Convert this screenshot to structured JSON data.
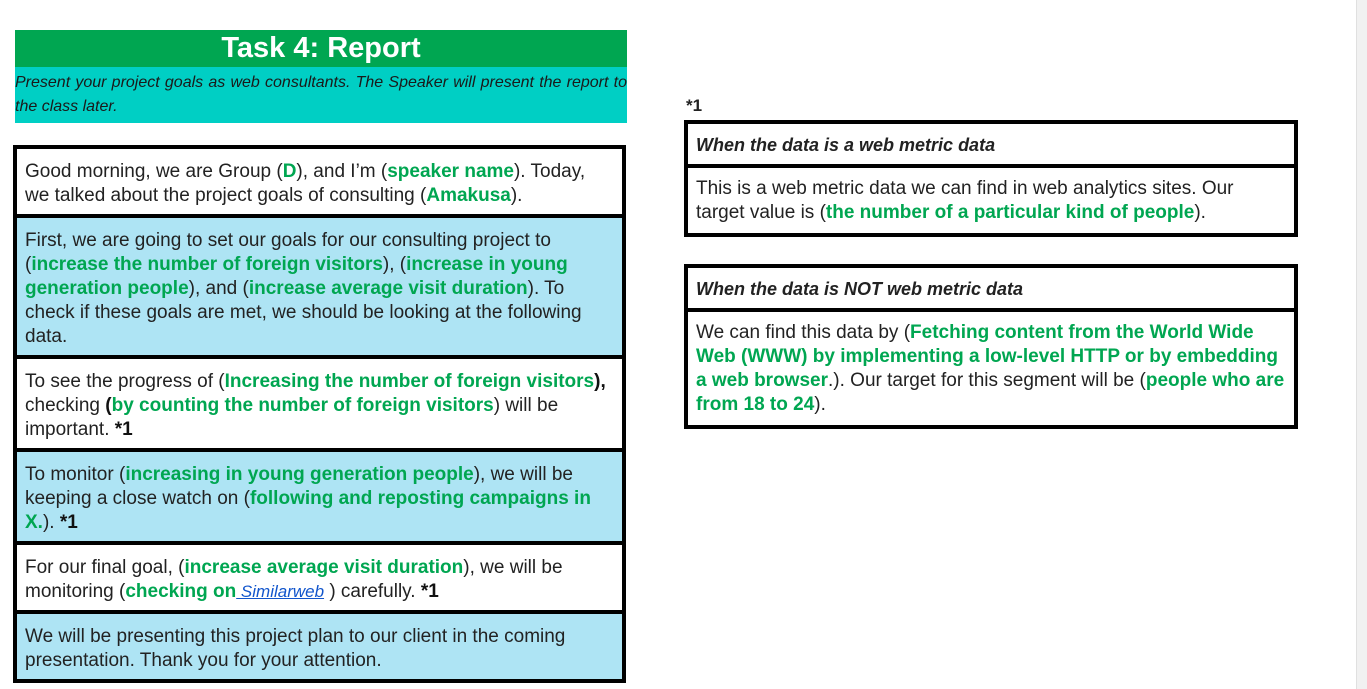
{
  "header": {
    "title": "Task 4: Report",
    "subtitle": "Present your project goals as web consultants.  The Speaker will present the report to the class later."
  },
  "report": {
    "row1": {
      "t1": "Good morning, we are Group (",
      "g1": "D",
      "t2": "), and I’m (",
      "g2": "speaker name",
      "t3": "). Today, we talked about the project goals of consulting (",
      "g3": "Amakusa",
      "t4": ")."
    },
    "row2": {
      "t1": "First, we are going to set our goals for our consulting project to (",
      "g1": "increase the number of foreign visitors",
      "t2": "), (",
      "g2": "increase in young generation people",
      "t3": "), and (",
      "g3": "increase average visit duration",
      "t4": "). To check if these goals are met, we should be looking at the following data."
    },
    "row3": {
      "t1": "To see the progress of (",
      "g1": "Increasing the number of foreign visitors",
      "t2": "),",
      "t3": " checking ",
      "t4": "(",
      "g2": "by counting the number of foreign visitors",
      "t5": ") will be important. ",
      "note": "*1"
    },
    "row4": {
      "t1": "To monitor (",
      "g1": "increasing in young generation people",
      "t2": "), we will be keeping a close watch on (",
      "g2": "following and reposting campaigns in X.",
      "t3": "). ",
      "note": "*1"
    },
    "row5": {
      "t1": "For our final goal, (",
      "g1": "increase average visit duration",
      "t2": "), we will be monitoring (",
      "g2": "checking on",
      "link": " Similarweb",
      "t3": " ) carefully. ",
      "note": "*1"
    },
    "row6": {
      "t1": "We will be presenting this project plan to our client in the coming presentation. Thank you for your attention."
    }
  },
  "notes": {
    "label": "*1",
    "web_metric": {
      "title": "When the data is a web metric data",
      "t1": "This is a web metric data we can find in web analytics sites. Our target value is (",
      "g1": "the number of a particular kind of people",
      "t2": ")."
    },
    "non_web_metric": {
      "title": "When the data is NOT web metric data",
      "t1": "We can find this data by (",
      "g1": "Fetching content from the World Wide Web (WWW) by implementing a low-level HTTP or by embedding a web browser",
      "t2": ".). Our target for this segment will be (",
      "g2": "people who are from 18 to 24",
      "t3": ")."
    }
  },
  "colors": {
    "header_green": "#00a651",
    "subheader_teal": "#00cfc4",
    "row_blue": "#aee4f4",
    "accent_text_green": "#00a651",
    "link_blue": "#1155cc"
  }
}
